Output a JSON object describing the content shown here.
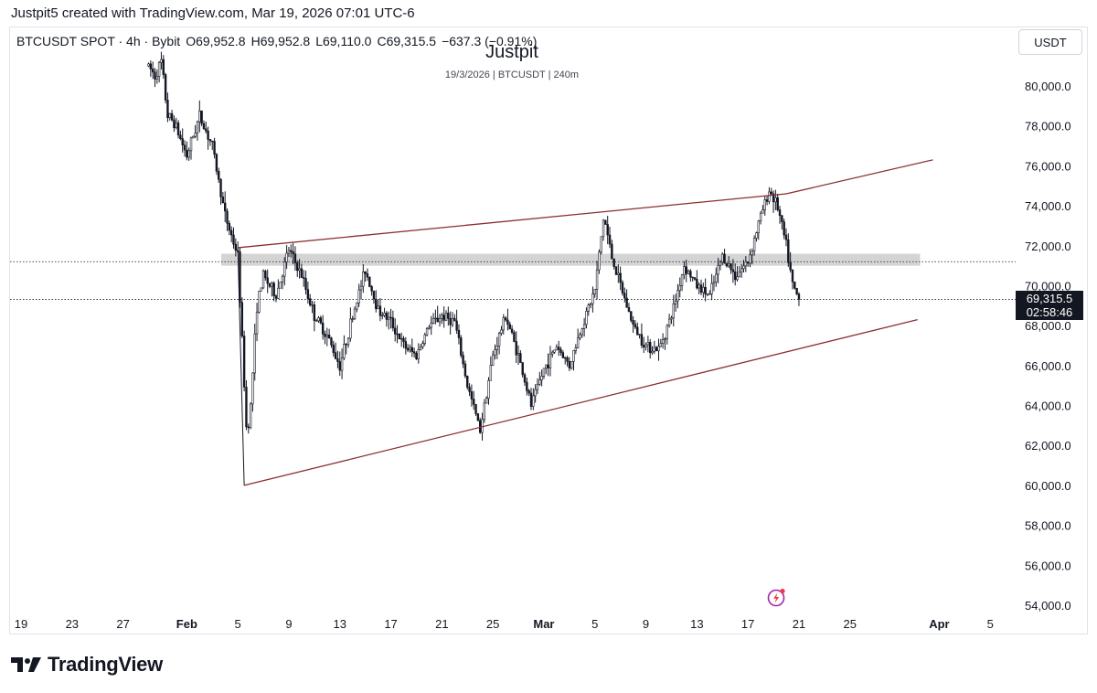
{
  "caption": "Justpit5 created with TradingView.com, Mar 19, 2026 07:01 UTC-6",
  "symbol_info": {
    "symbol": "BTCUSDT SPOT · 4h · Bybit",
    "open": "O69,952.8",
    "high": "H69,952.8",
    "low": "L69,110.0",
    "close": "C69,315.5",
    "change": "−637.3 (−0.91%)"
  },
  "watermark": {
    "title": "Justpit",
    "subtitle": "19/3/2026 | BTCUSDT | 240m"
  },
  "currency_button": "USDT",
  "current_price": {
    "value": "69,315.5",
    "countdown": "02:58:46"
  },
  "logo_text": "TradingView",
  "colors": {
    "candle": "#131722",
    "trendline": "#8b2e2e",
    "zone": "#d4d4d4",
    "grid_text": "#131722",
    "alert_accent": "#9c27b0",
    "alert_dot": "#f23645"
  },
  "icons": {
    "alert": "lightning-alert-icon",
    "logo": "tradingview-logo-icon"
  },
  "chart_data": {
    "type": "candlestick",
    "ylim": [
      53000,
      81500
    ],
    "y_ticks": [
      "80,000.0",
      "78,000.0",
      "76,000.0",
      "74,000.0",
      "72,000.0",
      "70,000.0",
      "68,000.0",
      "66,000.0",
      "64,000.0",
      "62,000.0",
      "60,000.0",
      "58,000.0",
      "56,000.0",
      "54,000.0"
    ],
    "x_ticks": [
      "19",
      "23",
      "27",
      "Feb",
      "5",
      "9",
      "13",
      "17",
      "21",
      "25",
      "Mar",
      "5",
      "9",
      "13",
      "17",
      "21",
      "25",
      "Apr",
      "5"
    ],
    "x_range_days": [
      19.0,
      66.5
    ],
    "month_starts": {
      "Jan": 0,
      "Feb": 31,
      "Mar": 59,
      "Apr": 90
    },
    "bold_ticks": [
      "Feb",
      "Mar",
      "Apr"
    ],
    "key_points": [
      [
        29.0,
        81000
      ],
      [
        29.5,
        80500
      ],
      [
        30.0,
        81200
      ],
      [
        30.5,
        78500
      ],
      [
        31.0,
        78200
      ],
      [
        32.0,
        76500
      ],
      [
        33.0,
        78500
      ],
      [
        34.0,
        77000
      ],
      [
        35.0,
        73500
      ],
      [
        36.0,
        71500
      ],
      [
        36.7,
        62500
      ],
      [
        37.0,
        64000
      ],
      [
        37.5,
        69000
      ],
      [
        38.0,
        70500
      ],
      [
        39.0,
        69500
      ],
      [
        40.0,
        71800
      ],
      [
        41.0,
        70500
      ],
      [
        42.0,
        68500
      ],
      [
        43.0,
        67500
      ],
      [
        44.0,
        66000
      ],
      [
        45.0,
        68500
      ],
      [
        46.0,
        70800
      ],
      [
        47.0,
        68800
      ],
      [
        48.0,
        68200
      ],
      [
        49.0,
        67000
      ],
      [
        50.0,
        66500
      ],
      [
        51.0,
        68000
      ],
      [
        52.0,
        68500
      ],
      [
        53.0,
        68200
      ],
      [
        54.0,
        65000
      ],
      [
        55.0,
        62800
      ],
      [
        56.0,
        66500
      ],
      [
        57.0,
        68500
      ],
      [
        58.0,
        66500
      ],
      [
        59.0,
        64000
      ],
      [
        60.0,
        65800
      ],
      [
        61.0,
        67000
      ],
      [
        62.0,
        66000
      ],
      [
        63.0,
        68000
      ],
      [
        64.0,
        69800
      ],
      [
        64.7,
        73500
      ],
      [
        65.3,
        71500
      ],
      [
        66.0,
        70000
      ],
      [
        67.0,
        68000
      ],
      [
        68.0,
        67000
      ],
      [
        69.0,
        66800
      ],
      [
        70.0,
        68500
      ],
      [
        71.0,
        71000
      ],
      [
        72.0,
        70000
      ],
      [
        73.0,
        69500
      ],
      [
        74.0,
        71500
      ],
      [
        75.0,
        70500
      ],
      [
        76.0,
        71200
      ],
      [
        77.0,
        73500
      ],
      [
        77.7,
        74800
      ],
      [
        78.3,
        74000
      ],
      [
        79.0,
        72000
      ],
      [
        79.5,
        70000
      ],
      [
        80.0,
        69300
      ]
    ],
    "trendlines": [
      {
        "from": [
          36.0,
          71900
        ],
        "to": [
          79.0,
          74600
        ]
      },
      {
        "from": [
          79.0,
          74600
        ],
        "to": [
          90.5,
          76300
        ]
      },
      {
        "from": [
          36.5,
          60000
        ],
        "to": [
          89.3,
          68300
        ]
      },
      {
        "from": [
          36.0,
          71900
        ],
        "to": [
          36.5,
          60000
        ]
      }
    ],
    "zone": {
      "from_x": 34.7,
      "to_x": 89.5,
      "y_low": 71000,
      "y_high": 71600
    },
    "dotted_levels": [
      71200,
      69315.5
    ]
  }
}
